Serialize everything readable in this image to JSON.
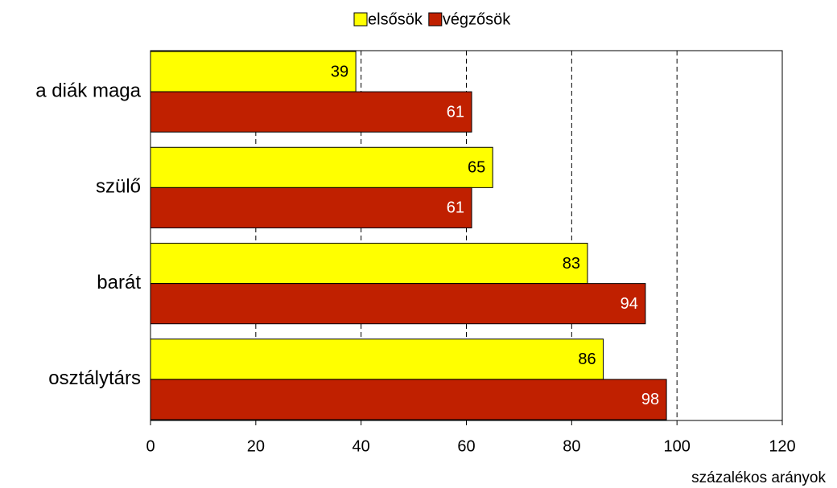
{
  "chart_data": {
    "type": "hbar",
    "categories": [
      "a diák maga",
      "szülő",
      "barát",
      "osztálytárs"
    ],
    "series": [
      {
        "name": "elsősök",
        "color": "#ffff00",
        "values": [
          39,
          65,
          83,
          86
        ]
      },
      {
        "name": "végzősök",
        "color": "#c02000",
        "values": [
          61,
          61,
          94,
          98
        ]
      }
    ],
    "xlim": [
      0,
      120
    ],
    "xticks": [
      0,
      20,
      40,
      60,
      80,
      100,
      120
    ],
    "xlabel": "százalékos arányok",
    "grid": true,
    "legend": "top"
  }
}
